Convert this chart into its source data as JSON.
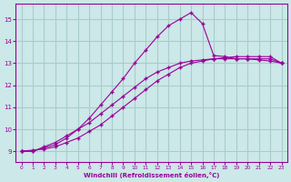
{
  "bg_color": "#cce8e8",
  "grid_color": "#aacccc",
  "line_color": "#990099",
  "marker": "+",
  "xlabel": "Windchill (Refroidissement éolien,°C)",
  "xlabel_color": "#990099",
  "ylim": [
    8.5,
    15.7
  ],
  "xlim": [
    -0.5,
    23.5
  ],
  "yticks": [
    9,
    10,
    11,
    12,
    13,
    14,
    15
  ],
  "xticks": [
    0,
    1,
    2,
    3,
    4,
    5,
    6,
    7,
    8,
    9,
    10,
    11,
    12,
    13,
    14,
    15,
    16,
    17,
    18,
    19,
    20,
    21,
    22,
    23
  ],
  "series": [
    {
      "x": [
        0,
        1,
        2,
        3,
        4,
        5,
        6,
        7,
        8,
        9,
        10,
        11,
        12,
        13,
        14,
        15,
        16,
        17,
        18,
        19,
        20,
        21,
        22,
        23
      ],
      "y": [
        9.0,
        9.0,
        9.2,
        9.4,
        9.7,
        10.0,
        10.3,
        10.7,
        11.1,
        11.5,
        11.9,
        12.3,
        12.6,
        12.8,
        13.0,
        13.1,
        13.15,
        13.2,
        13.2,
        13.2,
        13.2,
        13.2,
        13.2,
        13.0
      ]
    },
    {
      "x": [
        0,
        1,
        2,
        3,
        4,
        5,
        6,
        7,
        8,
        9,
        10,
        11,
        12,
        13,
        14,
        15,
        16,
        17,
        18,
        19,
        20,
        21,
        22,
        23
      ],
      "y": [
        9.0,
        9.05,
        9.1,
        9.2,
        9.4,
        9.6,
        9.9,
        10.2,
        10.6,
        11.0,
        11.4,
        11.8,
        12.2,
        12.5,
        12.8,
        13.0,
        13.1,
        13.2,
        13.25,
        13.3,
        13.3,
        13.3,
        13.3,
        13.0
      ]
    },
    {
      "x": [
        0,
        1,
        2,
        3,
        4,
        5,
        6,
        7,
        8,
        9,
        10,
        11,
        12,
        13,
        14,
        15,
        16,
        17,
        18,
        19,
        20,
        21,
        22,
        23
      ],
      "y": [
        9.0,
        9.0,
        9.15,
        9.3,
        9.6,
        10.0,
        10.5,
        11.1,
        11.7,
        12.3,
        13.0,
        13.6,
        14.2,
        14.7,
        15.0,
        15.3,
        14.8,
        13.35,
        13.3,
        13.2,
        13.2,
        13.15,
        13.1,
        13.0
      ]
    }
  ]
}
